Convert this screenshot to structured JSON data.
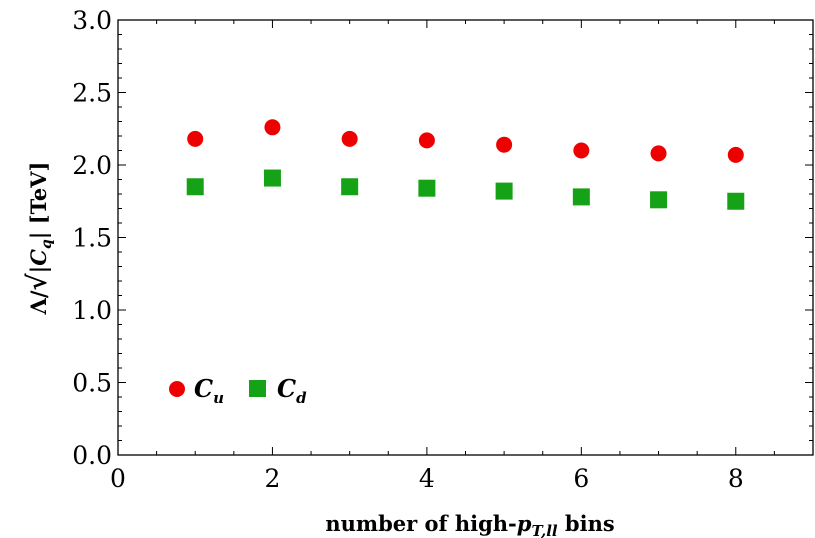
{
  "chart_data": {
    "type": "scatter",
    "xlabel": "number of high-pT,ll bins",
    "ylabel": "Λ/√|Cq| [TeV]",
    "xlim": [
      0,
      9
    ],
    "ylim": [
      0,
      3
    ],
    "x_ticks": [
      "0",
      "2",
      "4",
      "6",
      "8"
    ],
    "y_ticks": [
      "0.0",
      "0.5",
      "1.0",
      "1.5",
      "2.0",
      "2.5",
      "3.0"
    ],
    "legend_position": "bottom-left",
    "grid": false,
    "series": [
      {
        "name": "Cu",
        "marker": "circle",
        "color": "#ee0000",
        "x": [
          1,
          2,
          3,
          4,
          5,
          6,
          7,
          8
        ],
        "y": [
          2.18,
          2.26,
          2.18,
          2.17,
          2.14,
          2.1,
          2.08,
          2.07
        ]
      },
      {
        "name": "Cd",
        "marker": "square",
        "color": "#16a216",
        "x": [
          1,
          2,
          3,
          4,
          5,
          6,
          7,
          8
        ],
        "y": [
          1.85,
          1.91,
          1.85,
          1.84,
          1.82,
          1.78,
          1.76,
          1.75
        ]
      }
    ]
  }
}
